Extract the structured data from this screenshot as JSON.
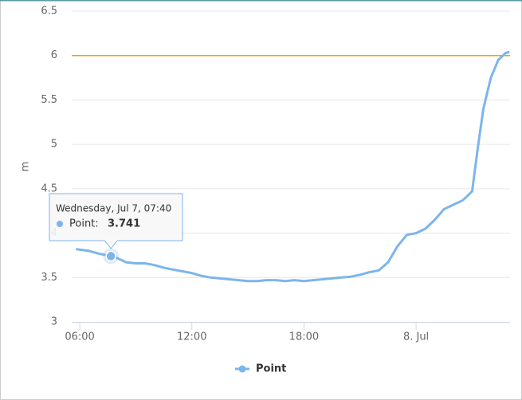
{
  "chart_data": {
    "type": "line",
    "y_axis_title": "m",
    "x": [
      5.8,
      6.5,
      7.0,
      7.667,
      8.0,
      8.5,
      9.0,
      9.5,
      10.0,
      10.5,
      11.0,
      11.5,
      12.0,
      12.5,
      13.0,
      13.5,
      14.0,
      14.5,
      15.0,
      15.5,
      16.0,
      16.5,
      17.0,
      17.5,
      18.0,
      18.5,
      19.0,
      19.5,
      20.0,
      20.5,
      21.0,
      21.5,
      22.0,
      22.5,
      23.0,
      23.5,
      24.0,
      24.5,
      25.0,
      25.5,
      26.0,
      26.5,
      27.0,
      27.3,
      27.6,
      28.0,
      28.4,
      28.8,
      29.0
    ],
    "series": [
      {
        "name": "Point",
        "color": "#7cb5ec",
        "values": [
          3.82,
          3.8,
          3.77,
          3.741,
          3.72,
          3.67,
          3.66,
          3.66,
          3.64,
          3.61,
          3.59,
          3.57,
          3.55,
          3.52,
          3.5,
          3.49,
          3.48,
          3.47,
          3.46,
          3.46,
          3.47,
          3.47,
          3.46,
          3.47,
          3.46,
          3.47,
          3.48,
          3.49,
          3.5,
          3.51,
          3.53,
          3.56,
          3.58,
          3.67,
          3.85,
          3.98,
          4.0,
          4.05,
          4.15,
          4.27,
          4.32,
          4.37,
          4.47,
          4.95,
          5.4,
          5.75,
          5.95,
          6.03,
          6.04
        ]
      }
    ],
    "xlim": [
      5.57,
      29.03
    ],
    "xticks": [
      {
        "value": 6,
        "label": "06:00"
      },
      {
        "value": 12,
        "label": "12:00"
      },
      {
        "value": 18,
        "label": "18:00"
      },
      {
        "value": 24,
        "label": "8. Jul"
      }
    ],
    "ylim": [
      3,
      6.5
    ],
    "yticks": [
      3,
      3.5,
      4,
      4.5,
      5,
      5.5,
      6,
      6.5
    ],
    "grid": true,
    "plot_lines": [
      {
        "value": 6,
        "color": "#f0a30a"
      }
    ],
    "legend": "bottom",
    "tooltip": {
      "header": "Wednesday, Jul 7, 07:40",
      "label": "Point:",
      "value": 3.741
    }
  }
}
